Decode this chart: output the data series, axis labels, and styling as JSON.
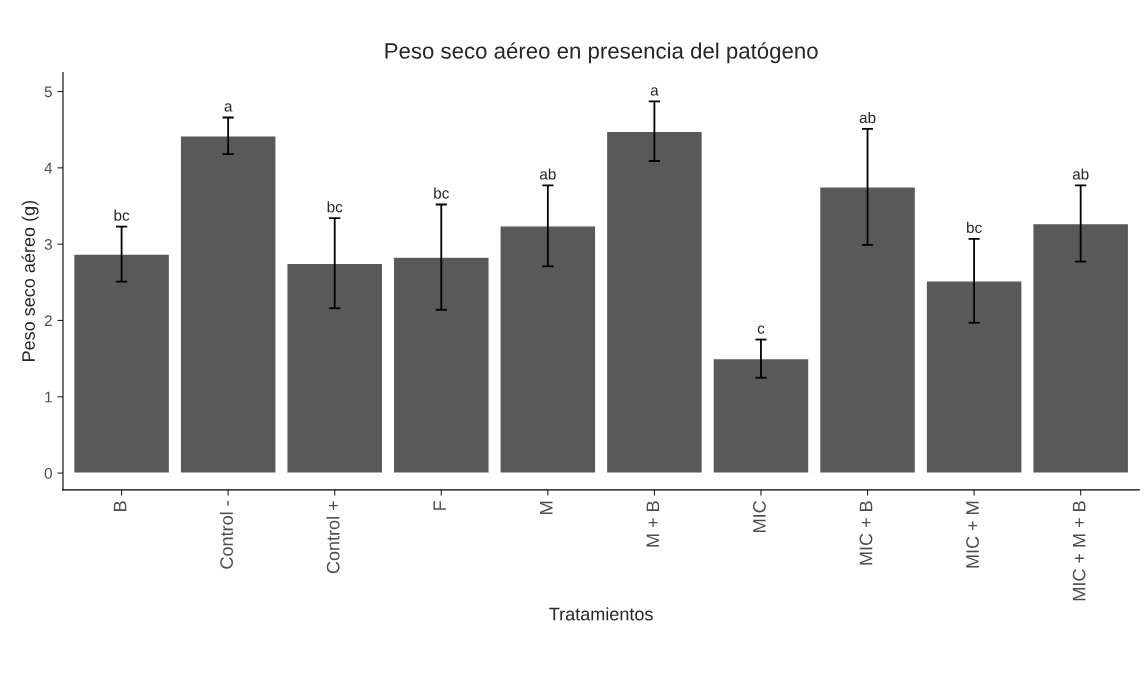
{
  "chart_data": {
    "type": "bar",
    "title": "Peso seco aéreo en presencia del patógeno",
    "xlabel": "Tratamientos",
    "ylabel": "Peso seco aéreo (g)",
    "categories": [
      "B",
      "Control -",
      "Control +",
      "F",
      "M",
      "M + B",
      "MIC",
      "MIC + B",
      "MIC + M",
      "MIC + M + B"
    ],
    "values": [
      2.87,
      4.42,
      2.75,
      2.83,
      3.24,
      4.48,
      1.5,
      3.75,
      2.52,
      3.27
    ],
    "errors": [
      0.36,
      0.24,
      0.59,
      0.69,
      0.53,
      0.39,
      0.25,
      0.76,
      0.55,
      0.5
    ],
    "color": "#595959",
    "ylim": [
      -0.22,
      5.25
    ],
    "yticks": [
      0,
      1,
      2,
      3,
      4,
      5
    ],
    "grid": false,
    "annotations": [
      {
        "text": "bc",
        "x": "B",
        "y": 3.23
      },
      {
        "text": "a",
        "x": "Control -",
        "y": 4.66
      },
      {
        "text": "bc",
        "x": "Control +",
        "y": 3.34
      },
      {
        "text": "bc",
        "x": "F",
        "y": 3.52
      },
      {
        "text": "ab",
        "x": "M",
        "y": 3.77
      },
      {
        "text": "a",
        "x": "M + B",
        "y": 4.87
      },
      {
        "text": "c",
        "x": "MIC",
        "y": 1.75
      },
      {
        "text": "ab",
        "x": "MIC + B",
        "y": 4.51
      },
      {
        "text": "bc",
        "x": "MIC + M",
        "y": 3.07
      },
      {
        "text": "ab",
        "x": "MIC + M + B",
        "y": 3.77
      }
    ]
  }
}
